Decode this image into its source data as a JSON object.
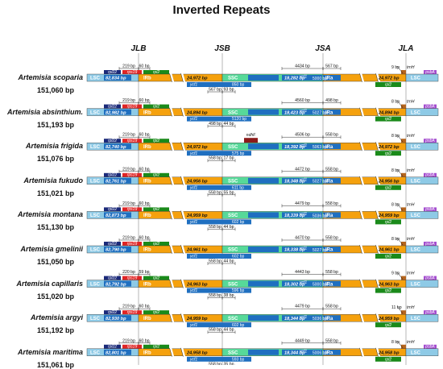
{
  "title": "Inverted Repeats",
  "junctions": [
    "JLB",
    "JSB",
    "JSA",
    "JLA"
  ],
  "region_labels": {
    "lsc": "LSC",
    "irb": "IRb",
    "ssc": "SSC",
    "ira": "IRa"
  },
  "gene_labels": {
    "rpl22": "rpl22",
    "rps19": "rps19",
    "rpl2": "rpl2",
    "ycf1": "ycf1",
    "ndhF": "ndhF",
    "trnH": "trnH",
    "psbA": "psbA"
  },
  "colors": {
    "lsc": "#8ecae6",
    "ir": "#f5a10d",
    "ssc": "#57d999",
    "rpl22": "#1b2a7a",
    "rps19": "#e02424",
    "rpl2": "#1a8a1a",
    "ycf1": "#1f6fc0",
    "ndhF": "#8b1a1a",
    "trnH": "#b5651d",
    "psbA": "#a44ccf"
  },
  "species": [
    {
      "name": "Artemisia scoparia",
      "size": "151,060 bp",
      "lsc": "82,834 bp",
      "irb": "24,972 bp",
      "ssc": "18,282 bp",
      "ira": "24,972 bp",
      "top_jlb": [
        "219 bp",
        "60 bp"
      ],
      "top_jsa": [
        "4434 bp",
        "567 bp"
      ],
      "ycf1_ira": "5000 bp",
      "top_jla": "9 bp",
      "ycf1_ssc": "850 bp",
      "bottom_jsb": [
        "567 bp",
        "93 bp"
      ],
      "ndhf_above": false
    },
    {
      "name": "Artemisia absinthium.",
      "size": "151,193 bp",
      "lsc": "82,982 bp",
      "irb": "24,894 bp",
      "ssc": "18,423 bp",
      "ira": "24,894 bp",
      "top_jlb": [
        "219 bp",
        "60 bp"
      ],
      "top_jsa": [
        "4560 bp",
        "498 bp"
      ],
      "ycf1_ira": "5027 bp",
      "top_jla": "8 bp",
      "ycf1_ssc": "5120 bp",
      "bottom_jsb": [
        "498 bp",
        "44 bp"
      ],
      "ndhf_above": false
    },
    {
      "name": "Artemisia frigida",
      "size": "151,076 bp",
      "lsc": "82,740 bp",
      "irb": "24,972 bp",
      "ssc": "18,392 bp",
      "ira": "24,972 bp",
      "top_jlb": [
        "219 bp",
        "60 bp"
      ],
      "top_jsa": [
        "4506 bp",
        "558 bp"
      ],
      "ycf1_ira": "5063 bp",
      "top_jla": "8 bp",
      "ycf1_ssc": "575 bp",
      "bottom_jsb": [
        "558 bp",
        "17 bp"
      ],
      "ndhf_above": true
    },
    {
      "name": "Artemisia fukudo",
      "size": "151,021 bp",
      "lsc": "82,761 bp",
      "irb": "24,956 bp",
      "ssc": "18,348 bp",
      "ira": "24,956 bp",
      "top_jlb": [
        "219 bp",
        "60 bp"
      ],
      "top_jsa": [
        "4472 bp",
        "558 bp"
      ],
      "ycf1_ira": "5027 bp",
      "top_jla": "8 bp",
      "ycf1_ssc": "611 bp",
      "bottom_jsb": [
        "558 bp",
        "55 bp"
      ],
      "ndhf_above": false
    },
    {
      "name": "Artemisia montana",
      "size": "151,130 bp",
      "lsc": "82,873 bp",
      "irb": "24,959 bp",
      "ssc": "18,339 bp",
      "ira": "24,959 bp",
      "top_jlb": [
        "219 bp",
        "60 bp"
      ],
      "top_jsa": [
        "4479 bp",
        "558 bp"
      ],
      "ycf1_ira": "5036 bp",
      "top_jla": "8 bp",
      "ycf1_ssc": "602 bp",
      "bottom_jsb": [
        "558 bp",
        "44 bp"
      ],
      "ndhf_above": false
    },
    {
      "name": "Artemisia gmelinii",
      "size": "151,050 bp",
      "lsc": "82,790 bp",
      "irb": "24,961 bp",
      "ssc": "18,338 bp",
      "ira": "24,961 bp",
      "top_jlb": [
        "219 bp",
        "60 bp"
      ],
      "top_jsa": [
        "4470 bp",
        "558 bp"
      ],
      "ycf1_ira": "5027 bp",
      "top_jla": "8 bp",
      "ycf1_ssc": "602 bp",
      "bottom_jsb": [
        "558 bp",
        "44 bp"
      ],
      "ndhf_above": false
    },
    {
      "name": "Artemisia capillaris",
      "size": "151,020 bp",
      "lsc": "82,792 bp",
      "irb": "24,963 bp",
      "ssc": "18,302 bp",
      "ira": "24,963 bp",
      "top_jlb": [
        "220 bp",
        "59 bp"
      ],
      "top_jsa": [
        "4443 bp",
        "558 bp"
      ],
      "ycf1_ira": "5000 bp",
      "top_jla": "9 bp",
      "ycf1_ssc": "596 bp",
      "bottom_jsb": [
        "558 bp",
        "38 bp"
      ],
      "ndhf_above": false
    },
    {
      "name": "Artemisia argyi",
      "size": "151,192 bp",
      "lsc": "82,930 bp",
      "irb": "24,959 bp",
      "ssc": "18,344 bp",
      "ira": "24,959 bp",
      "top_jlb": [
        "219 bp",
        "60 bp"
      ],
      "top_jsa": [
        "4479 bp",
        "558 bp"
      ],
      "ycf1_ira": "5036 bp",
      "top_jla": "11 bp",
      "ycf1_ssc": "602 bp",
      "bottom_jsb": [
        "558 bp",
        "44 bp"
      ],
      "ndhf_above": false
    },
    {
      "name": "Artemisia maritima",
      "size": "151,061 bp",
      "lsc": "82,801 bp",
      "irb": "24,958 bp",
      "ssc": "18,344 bp",
      "ira": "24,958 bp",
      "top_jlb": [
        "219 bp",
        "60 bp"
      ],
      "top_jsa": [
        "4449 bp",
        "558 bp"
      ],
      "ycf1_ira": "5006 bp",
      "top_jla": "8 bp",
      "ycf1_ssc": "593 bp",
      "bottom_jsb": [
        "558 bp",
        "35 bp"
      ],
      "ndhf_above": false
    }
  ]
}
